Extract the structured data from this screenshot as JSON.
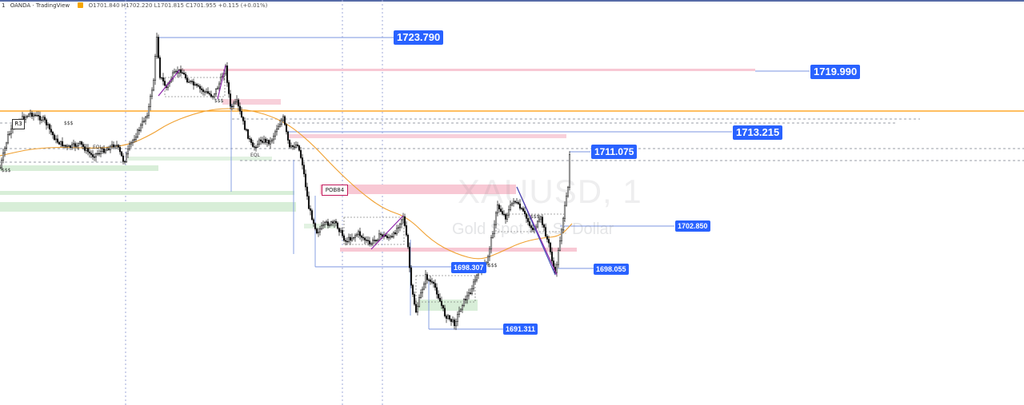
{
  "header": {
    "timeframe": "1",
    "source": "OANDA · TradingView",
    "ohlc": "O1701.840 H1702.220 L1701.815 C1701.955 +0.115 (+0.01%)"
  },
  "watermark": {
    "symbol": "XAUUSD, 1",
    "description": "Gold Spot / U.S. Dollar"
  },
  "colors": {
    "accent": "#2962ff",
    "moving_average": "#f0a030",
    "horizontal_level": "#ff9800",
    "supply_zone": "#f8c8d4",
    "demand_zone": "#cfe9cf",
    "candle": "#111111",
    "swing_line": "#8e24aa"
  },
  "annotations": {
    "r3": "R3",
    "pob": "POB84",
    "eql": "EQL",
    "sss": "$$$"
  },
  "chart_data": {
    "type": "candlestick",
    "symbol": "XAUUSD",
    "interval": "1",
    "price_labels": [
      1723.79,
      1719.99,
      1713.215,
      1711.075,
      1702.85,
      1698.055,
      1698.307,
      1691.311
    ],
    "price_labels_text": [
      "1723.790",
      "1719.990",
      "1713.215",
      "1711.075",
      "1702.850",
      "1698.055",
      "1698.307",
      "1691.311"
    ],
    "last_price": 1701.955
  }
}
